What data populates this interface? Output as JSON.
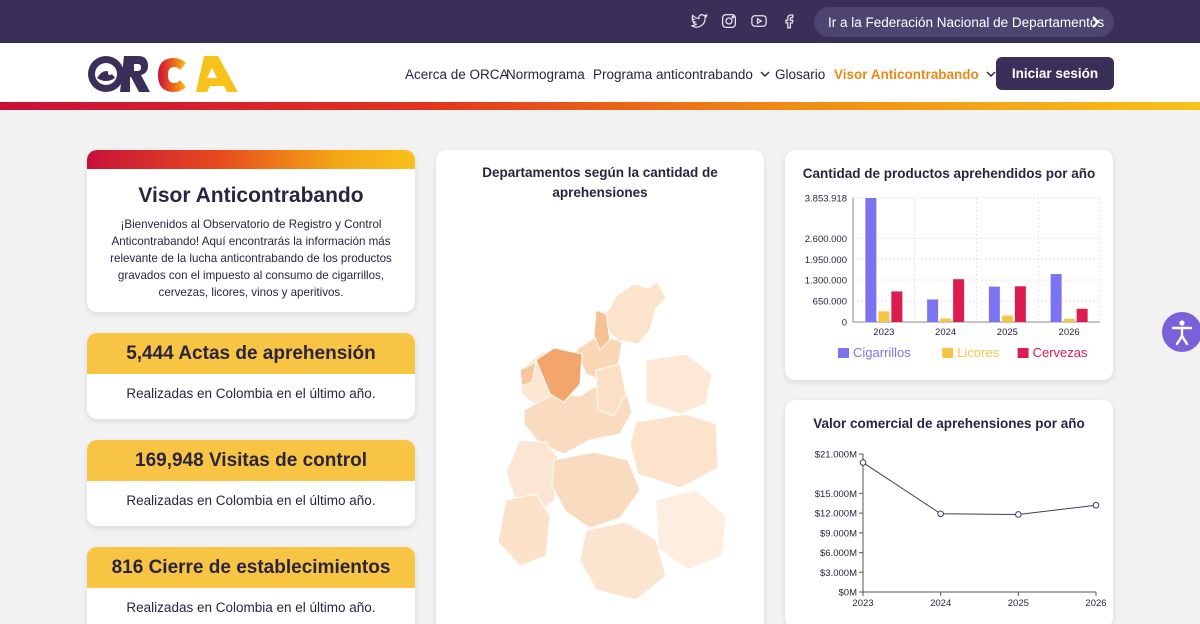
{
  "topbar": {
    "social_icons": [
      "twitter-icon",
      "instagram-icon",
      "youtube-icon",
      "facebook-icon"
    ],
    "federation_link": "Ir a la Federación Nacional de Departamentos"
  },
  "brand": {
    "logo_text": "ORCA"
  },
  "nav": {
    "items": [
      {
        "label": "Acerca de ORCA",
        "has_dropdown": false
      },
      {
        "label": "Normograma",
        "has_dropdown": false
      },
      {
        "label": "Programa anticontrabando",
        "has_dropdown": true
      },
      {
        "label": "Glosario",
        "has_dropdown": false
      },
      {
        "label": "Visor Anticontrabando",
        "has_dropdown": true,
        "active": true
      }
    ],
    "login_label": "Iniciar sesión"
  },
  "intro": {
    "title": "Visor Anticontrabando",
    "text": "¡Bienvenidos al Observatorio de Registro y Control Anticontrabando! Aquí encontrarás la información más relevante de la lucha anticontrabando de los productos gravados con el impuesto al consumo de cigarrillos, cervezas, licores, vinos y aperitivos."
  },
  "stats": [
    {
      "headline": "5,444 Actas de aprehensión",
      "subtitle": "Realizadas en Colombia en el último año."
    },
    {
      "headline": "169,948 Visitas de control",
      "subtitle": "Realizadas en Colombia en el último año."
    },
    {
      "headline": "816 Cierre de establecimientos",
      "subtitle": "Realizadas en Colombia en el último año."
    }
  ],
  "map": {
    "title": "Departamentos según la cantidad de aprehensiones"
  },
  "colors": {
    "accent": "#e8891a",
    "brand_dark": "#3a2f58",
    "stat_yellow": "#f8c444",
    "cigarrillos": "#7b73f0",
    "licores": "#f8c444",
    "cervezas": "#dc1b4f"
  },
  "chart_data": [
    {
      "type": "bar",
      "title": "Cantidad de productos aprehendidos por año",
      "categories": [
        "2023",
        "2024",
        "2025",
        "2026"
      ],
      "series": [
        {
          "name": "Cigarrillos",
          "values": [
            3853918,
            700000,
            1100000,
            1490000
          ]
        },
        {
          "name": "Licores",
          "values": [
            330000,
            110000,
            200000,
            100000
          ]
        },
        {
          "name": "Cervezas",
          "values": [
            950000,
            1330000,
            1110000,
            410000
          ]
        }
      ],
      "yticks": [
        "0",
        "650.000",
        "1.300.000",
        "1.950.000",
        "2.600.000",
        "3.853.918"
      ],
      "ytick_values": [
        0,
        650000,
        1300000,
        1950000,
        2600000,
        3853918
      ],
      "ylim": [
        0,
        3853918
      ],
      "grid": true,
      "legend": "bottom"
    },
    {
      "type": "line",
      "title": "Valor comercial de aprehensiones por año",
      "x": [
        "2023",
        "2024",
        "2025",
        "2026"
      ],
      "series": [
        {
          "values": [
            19700,
            11900,
            11800,
            13200
          ]
        }
      ],
      "yticks": [
        "$0M",
        "$3.000M",
        "$6.000M",
        "$9.000M",
        "$12.000M",
        "$15.000M",
        "$21.000M"
      ],
      "ytick_values": [
        0,
        3000,
        6000,
        9000,
        12000,
        15000,
        21000
      ],
      "ylim": [
        0,
        21000
      ],
      "grid": false
    }
  ]
}
